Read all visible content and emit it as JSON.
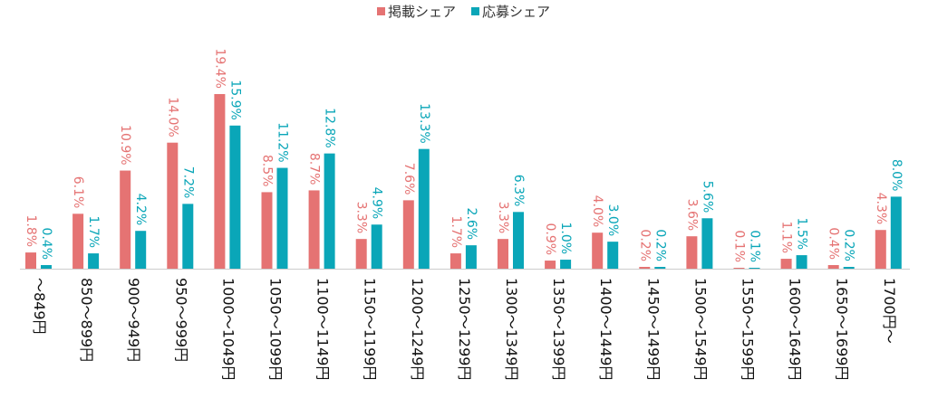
{
  "chart_data": {
    "type": "bar",
    "legend_position": "top-center",
    "grid": false,
    "ylim": [
      0,
      20
    ],
    "categories": [
      "～849円",
      "850～899円",
      "900～949円",
      "950～999円",
      "1000～1049円",
      "1050～1099円",
      "1100～1149円",
      "1150～1199円",
      "1200～1249円",
      "1250～1299円",
      "1300～1349円",
      "1350～1399円",
      "1400～1449円",
      "1450～1499円",
      "1500～1549円",
      "1550～1599円",
      "1600～1649円",
      "1650～1699円",
      "1700円～"
    ],
    "series": [
      {
        "name": "掲載シェア",
        "color": "#e57373",
        "values": [
          1.8,
          6.1,
          10.9,
          14.0,
          19.4,
          8.5,
          8.7,
          3.3,
          7.6,
          1.7,
          3.3,
          0.9,
          4.0,
          0.2,
          3.6,
          0.1,
          1.1,
          0.4,
          4.3
        ],
        "labels": [
          "1.8%",
          "6.1%",
          "10.9%",
          "14.0%",
          "19.4%",
          "8.5%",
          "8.7%",
          "3.3%",
          "7.6%",
          "1.7%",
          "3.3%",
          "0.9%",
          "4.0%",
          "0.2%",
          "3.6%",
          "0.1%",
          "1.1%",
          "0.4%",
          "4.3%"
        ]
      },
      {
        "name": "応募シェア",
        "color": "#0aa6b8",
        "values": [
          0.4,
          1.7,
          4.2,
          7.2,
          15.9,
          11.2,
          12.8,
          4.9,
          13.3,
          2.6,
          6.3,
          1.0,
          3.0,
          0.2,
          5.6,
          0.1,
          1.5,
          0.2,
          8.0
        ],
        "labels": [
          "0.4%",
          "1.7%",
          "4.2%",
          "7.2%",
          "15.9%",
          "11.2%",
          "12.8%",
          "4.9%",
          "13.3%",
          "2.6%",
          "6.3%",
          "1.0%",
          "3.0%",
          "0.2%",
          "5.6%",
          "0.1%",
          "1.5%",
          "0.2%",
          "8.0%"
        ]
      }
    ]
  }
}
